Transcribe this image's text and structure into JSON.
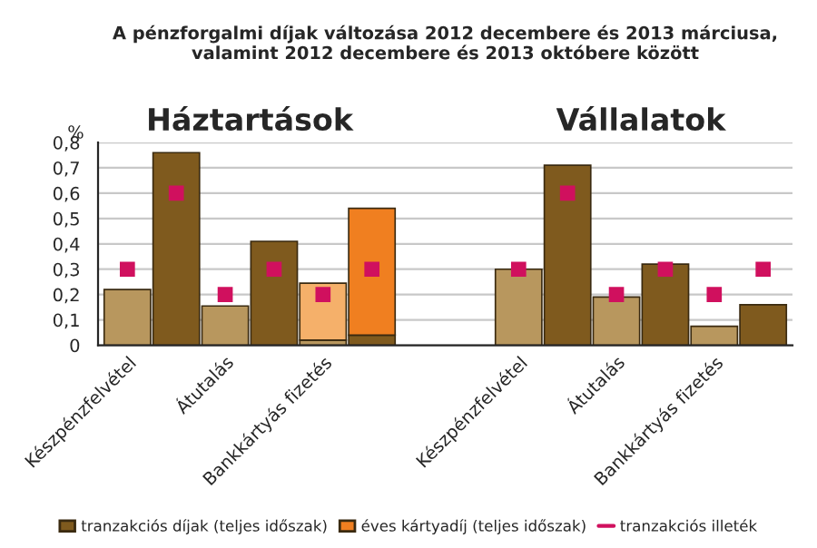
{
  "chart_data": {
    "type": "bar",
    "title": "A pénzforgalmi díjak változása 2012 decembere és 2013 márciusa, valamint 2012 decembere és 2013 októbere között",
    "annotations": [
      "Háztartások",
      "Vállalatok"
    ],
    "ylabel": "%",
    "categories": [
      "Készpénzfelvétel",
      null,
      "Átutalás",
      null,
      "Bankkártyás fizetés",
      null,
      null,
      null,
      "Készpénzfelvétel",
      null,
      "Átutalás",
      null,
      "Bankkártyás fizetés",
      null
    ],
    "stacked": true,
    "series": [
      {
        "color": "#b8975e",
        "values": [
          0.22,
          null,
          0.155,
          null,
          0.02,
          null,
          null,
          null,
          0.3,
          null,
          0.19,
          null,
          0.075,
          null
        ]
      },
      {
        "name": "tranzakciós díjak (teljes időszak)",
        "color": "#7f5a1e",
        "values": [
          null,
          0.76,
          null,
          0.41,
          null,
          0.04,
          null,
          null,
          null,
          0.71,
          null,
          0.32,
          null,
          0.16
        ]
      },
      {
        "color": "#f5b06a",
        "values": [
          null,
          null,
          null,
          null,
          0.225,
          null,
          null,
          null,
          null,
          null,
          null,
          null,
          null,
          null
        ]
      },
      {
        "name": "éves kártyadíj (teljes időszak)",
        "color": "#f07f20",
        "values": [
          null,
          null,
          null,
          null,
          null,
          0.5,
          null,
          null,
          null,
          null,
          null,
          null,
          null,
          null
        ]
      },
      {
        "name": "tranzakciós illeték",
        "type": "scatter",
        "marker": "square",
        "color": "#d0105e",
        "values": [
          0.3,
          0.6,
          0.2,
          0.3,
          0.2,
          0.3,
          null,
          null,
          0.3,
          0.6,
          0.2,
          0.3,
          0.2,
          0.3
        ]
      }
    ],
    "ylim": [
      0,
      0.8
    ],
    "yticks": [
      {
        "value": 0,
        "label": "0"
      },
      {
        "value": 0.1,
        "label": "0,1"
      },
      {
        "value": 0.2,
        "label": "0,2"
      },
      {
        "value": 0.3,
        "label": "0,3"
      },
      {
        "value": 0.4,
        "label": "0,4"
      },
      {
        "value": 0.5,
        "label": "0,5"
      },
      {
        "value": 0.6,
        "label": "0,6"
      },
      {
        "value": 0.7,
        "label": "0,7"
      },
      {
        "value": 0.8,
        "label": "0,8"
      }
    ],
    "grid": "y",
    "legend": "bottom"
  }
}
